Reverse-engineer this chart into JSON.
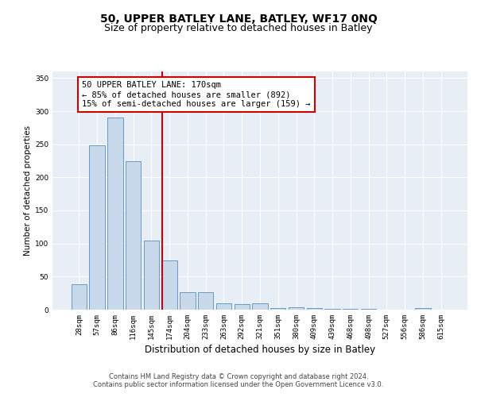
{
  "title_line1": "50, UPPER BATLEY LANE, BATLEY, WF17 0NQ",
  "title_line2": "Size of property relative to detached houses in Batley",
  "xlabel": "Distribution of detached houses by size in Batley",
  "ylabel": "Number of detached properties",
  "categories": [
    "28sqm",
    "57sqm",
    "86sqm",
    "116sqm",
    "145sqm",
    "174sqm",
    "204sqm",
    "233sqm",
    "263sqm",
    "292sqm",
    "321sqm",
    "351sqm",
    "380sqm",
    "409sqm",
    "439sqm",
    "468sqm",
    "498sqm",
    "527sqm",
    "556sqm",
    "586sqm",
    "615sqm"
  ],
  "values": [
    38,
    248,
    290,
    224,
    105,
    75,
    27,
    27,
    10,
    8,
    10,
    3,
    4,
    3,
    1,
    1,
    1,
    0,
    0,
    2,
    0
  ],
  "bar_color": "#c9d9ec",
  "bar_edge_color": "#5b8db8",
  "vline_color": "#cc0000",
  "vline_x_index": 5,
  "ylim": [
    0,
    360
  ],
  "yticks": [
    0,
    50,
    100,
    150,
    200,
    250,
    300,
    350
  ],
  "annotation_text": "50 UPPER BATLEY LANE: 170sqm\n← 85% of detached houses are smaller (892)\n15% of semi-detached houses are larger (159) →",
  "annotation_box_color": "#ffffff",
  "annotation_box_edge": "#cc0000",
  "footer_line1": "Contains HM Land Registry data © Crown copyright and database right 2024.",
  "footer_line2": "Contains public sector information licensed under the Open Government Licence v3.0.",
  "background_color": "#ffffff",
  "plot_bg_color": "#e8eef5",
  "grid_color": "#ffffff",
  "title_fontsize": 10,
  "subtitle_fontsize": 9,
  "xlabel_fontsize": 8.5,
  "ylabel_fontsize": 7.5,
  "tick_fontsize": 6.5,
  "footer_fontsize": 6,
  "annotation_fontsize": 7.5
}
